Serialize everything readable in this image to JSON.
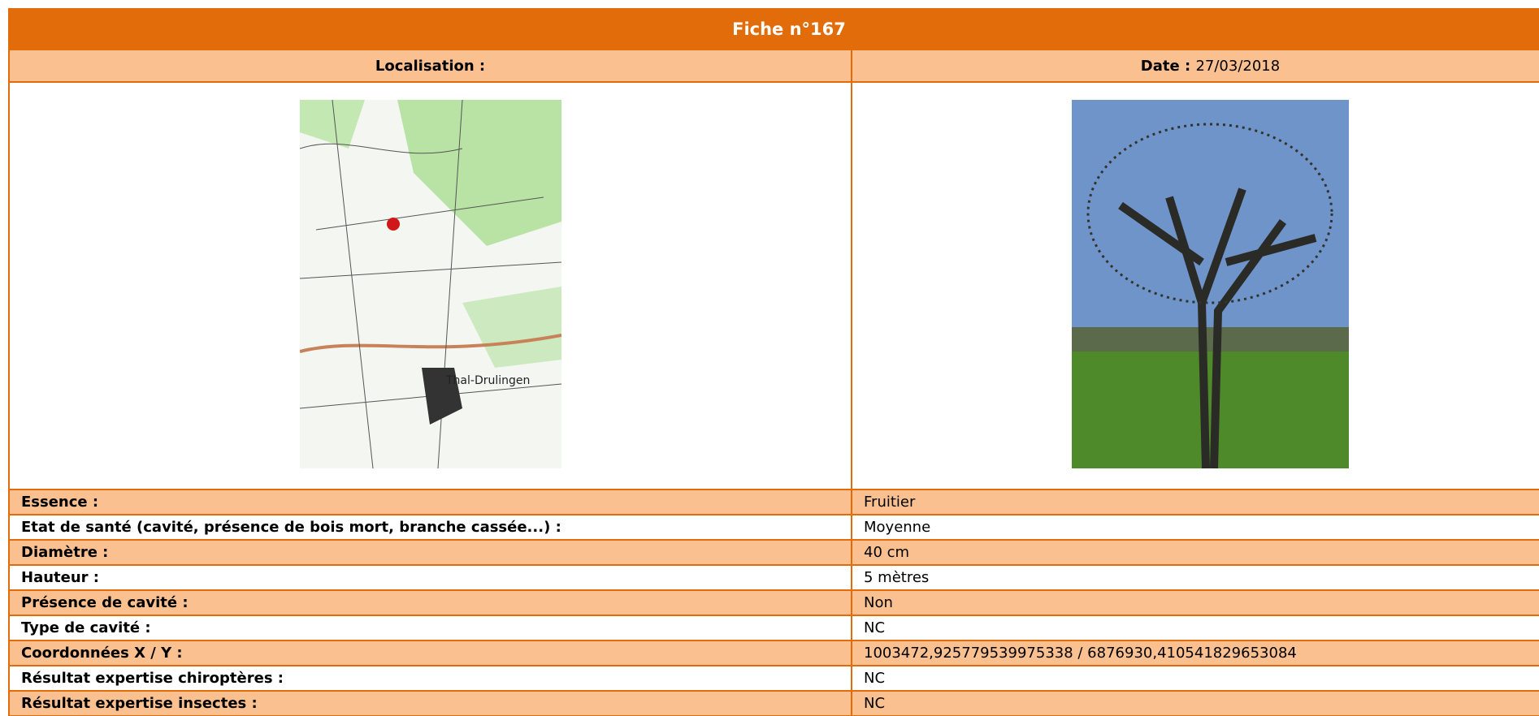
{
  "header": {
    "title": "Fiche n°167",
    "location_label": "Localisation :",
    "date_label": "Date :",
    "date": "27/03/2018"
  },
  "rows": [
    {
      "label": "Essence :",
      "value": "Fruitier"
    },
    {
      "label": "Etat de santé (cavité, présence de bois mort, branche cassée...) :",
      "value": "Moyenne"
    },
    {
      "label": "Diamètre :",
      "value": "40 cm"
    },
    {
      "label": "Hauteur :",
      "value": "5 mètres"
    },
    {
      "label": "Présence de cavité :",
      "value": "Non"
    },
    {
      "label": "Type de cavité :",
      "value": "NC"
    },
    {
      "label": "Coordonnées X / Y :",
      "value": "1003472,925779539975338 / 6876930,410541829653084"
    },
    {
      "label": "Résultat expertise chiroptères :",
      "value": "NC"
    },
    {
      "label": "Résultat expertise insectes :",
      "value": "NC"
    }
  ]
}
